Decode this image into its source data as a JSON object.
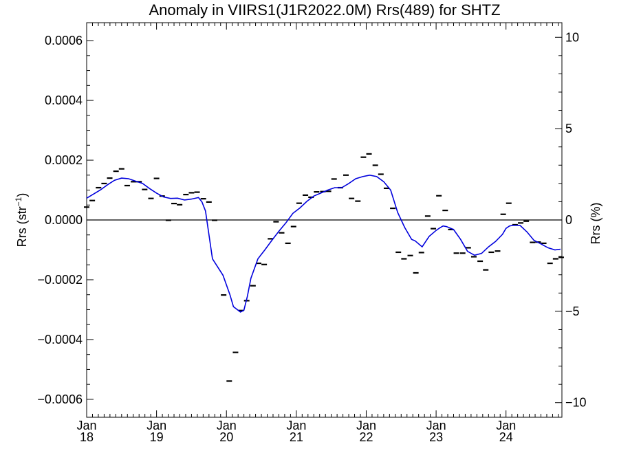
{
  "chart_data": {
    "type": "line",
    "title": "Anomaly in VIIRS1(J1R2022.0M) Rrs(489) for SHTZ",
    "ylabel_left": "Rrs (str",
    "ylabel_left_sup": "−1",
    "ylabel_left_end": ")",
    "ylabel_right": "Rrs (%)",
    "xlim": [
      2018.0,
      2024.8
    ],
    "ylim": [
      -0.00066,
      0.00066
    ],
    "ylim_right_percent": [
      -10.8,
      10.8
    ],
    "grid": false,
    "zero_line": true,
    "yticks_left": [
      {
        "value": 0.0006,
        "label": "0.0006"
      },
      {
        "value": 0.0004,
        "label": "0.0004"
      },
      {
        "value": 0.0002,
        "label": "0.0002"
      },
      {
        "value": 0.0,
        "label": "0.0000"
      },
      {
        "value": -0.0002,
        "label": "−0.0002"
      },
      {
        "value": -0.0004,
        "label": "−0.0004"
      },
      {
        "value": -0.0006,
        "label": "−0.0006"
      }
    ],
    "yticks_right": [
      {
        "value": 10,
        "label": "10"
      },
      {
        "value": 5,
        "label": "5"
      },
      {
        "value": 0,
        "label": "0"
      },
      {
        "value": -5,
        "label": "−5"
      },
      {
        "value": -10,
        "label": "−10"
      }
    ],
    "xticks": [
      {
        "value": 2018.0,
        "month": "Jan",
        "year": "18"
      },
      {
        "value": 2019.0,
        "month": "Jan",
        "year": "19"
      },
      {
        "value": 2020.0,
        "month": "Jan",
        "year": "20"
      },
      {
        "value": 2021.0,
        "month": "Jan",
        "year": "21"
      },
      {
        "value": 2022.0,
        "month": "Jan",
        "year": "22"
      },
      {
        "value": 2023.0,
        "month": "Jan",
        "year": "23"
      },
      {
        "value": 2024.0,
        "month": "Jan",
        "year": "24"
      }
    ],
    "series": [
      {
        "kind": "monthly-anomaly",
        "color": "#000000",
        "x": [
          2018.0,
          2018.08,
          2018.17,
          2018.25,
          2018.33,
          2018.42,
          2018.5,
          2018.58,
          2018.67,
          2018.75,
          2018.83,
          2018.92,
          2019.0,
          2019.08,
          2019.17,
          2019.25,
          2019.33,
          2019.42,
          2019.5,
          2019.58,
          2019.67,
          2019.75,
          2019.83,
          2019.96,
          2020.04,
          2020.13,
          2020.21,
          2020.29,
          2020.38,
          2020.46,
          2020.54,
          2020.63,
          2020.71,
          2020.79,
          2020.88,
          2020.96,
          2021.04,
          2021.13,
          2021.21,
          2021.29,
          2021.38,
          2021.46,
          2021.54,
          2021.63,
          2021.71,
          2021.79,
          2021.88,
          2021.96,
          2022.04,
          2022.13,
          2022.21,
          2022.29,
          2022.38,
          2022.46,
          2022.54,
          2022.63,
          2022.71,
          2022.79,
          2022.88,
          2022.96,
          2023.04,
          2023.13,
          2023.21,
          2023.29,
          2023.38,
          2023.46,
          2023.54,
          2023.63,
          2023.71,
          2023.79,
          2023.88,
          2023.96,
          2024.04,
          2024.13,
          2024.21,
          2024.29,
          2024.38,
          2024.46,
          2024.54,
          2024.63,
          2024.71,
          2024.79
        ],
        "y": [
          4.3e-05,
          6.5e-05,
          0.000108,
          0.000122,
          0.00014,
          0.000163,
          0.000171,
          0.000115,
          0.000128,
          0.000128,
          0.000102,
          7.2e-05,
          0.000139,
          8e-05,
          -1e-06,
          5.5e-05,
          5.1e-05,
          8.5e-05,
          9.1e-05,
          9.3e-05,
          7.1e-05,
          6e-05,
          -1e-06,
          -0.000251,
          -0.000539,
          -0.000443,
          -0.000303,
          -0.00027,
          -0.00022,
          -0.000145,
          -0.000149,
          -6.3e-05,
          -6e-06,
          -4.3e-05,
          -7.8e-05,
          -2.2e-05,
          5.6e-05,
          8.3e-05,
          7.6e-05,
          9.4e-05,
          9.5e-05,
          9.6e-05,
          0.000137,
          0.000108,
          0.00015,
          7.2e-05,
          6.3e-05,
          0.00021,
          0.000221,
          0.000183,
          0.000153,
          0.000106,
          3.9e-05,
          -0.000108,
          -0.00013,
          -0.000119,
          -0.000177,
          -0.000109,
          1.3e-05,
          -2.9e-05,
          8.1e-05,
          3.2e-05,
          -3.2e-05,
          -0.000111,
          -0.000111,
          -9.3e-05,
          -0.000123,
          -0.000138,
          -0.000167,
          -0.000108,
          -0.000104,
          1.9e-05,
          5.6e-05,
          -1.6e-05,
          -1e-05,
          -4e-06,
          -7.5e-05,
          -7.4e-05,
          -7.8e-05,
          -0.000145,
          -0.00013,
          -0.000125
        ]
      },
      {
        "kind": "running-mean",
        "color": "#0000dd",
        "x": [
          2018.0,
          2018.1,
          2018.2,
          2018.3,
          2018.4,
          2018.5,
          2018.6,
          2018.7,
          2018.8,
          2018.9,
          2019.0,
          2019.1,
          2019.2,
          2019.3,
          2019.4,
          2019.5,
          2019.6,
          2019.65,
          2019.7,
          2019.8,
          2019.95,
          2020.05,
          2020.1,
          2020.2,
          2020.25,
          2020.3,
          2020.35,
          2020.45,
          2020.55,
          2020.65,
          2020.75,
          2020.85,
          2020.95,
          2021.05,
          2021.15,
          2021.25,
          2021.35,
          2021.45,
          2021.55,
          2021.65,
          2021.75,
          2021.85,
          2021.95,
          2022.05,
          2022.15,
          2022.25,
          2022.35,
          2022.45,
          2022.55,
          2022.65,
          2022.7,
          2022.8,
          2022.9,
          2023.0,
          2023.05,
          2023.1,
          2023.15,
          2023.25,
          2023.35,
          2023.45,
          2023.55,
          2023.65,
          2023.75,
          2023.85,
          2023.95,
          2024.0,
          2024.05,
          2024.1,
          2024.2,
          2024.3,
          2024.4,
          2024.5,
          2024.6,
          2024.7,
          2024.78
        ],
        "y": [
          7.3e-05,
          8.7e-05,
          0.000101,
          0.000118,
          0.000133,
          0.00014,
          0.000138,
          0.00013,
          0.000122,
          0.000105,
          9e-05,
          7.7e-05,
          7.2e-05,
          7.3e-05,
          6.7e-05,
          7e-05,
          7.5e-05,
          6e-05,
          3e-05,
          -0.00013,
          -0.000185,
          -0.00025,
          -0.00029,
          -0.000308,
          -0.000302,
          -0.000255,
          -0.000195,
          -0.00013,
          -0.0001,
          -6.8e-05,
          -3.8e-05,
          -1e-05,
          2.2e-05,
          4e-05,
          6.2e-05,
          8e-05,
          9e-05,
          0.0001,
          0.000108,
          0.000108,
          0.000122,
          0.000138,
          0.000145,
          0.00015,
          0.000145,
          0.000128,
          0.0001,
          2.5e-05,
          -2.5e-05,
          -6.5e-05,
          -7e-05,
          -9e-05,
          -5.5e-05,
          -3.5e-05,
          -2.7e-05,
          -2e-05,
          -2.2e-05,
          -3.2e-05,
          -6.5e-05,
          -0.000105,
          -0.000118,
          -0.000112,
          -9e-05,
          -7.2e-05,
          -4.8e-05,
          -2.8e-05,
          -2e-05,
          -1.8e-05,
          -1.8e-05,
          -4e-05,
          -6.8e-05,
          -8e-05,
          -9.3e-05,
          -0.0001,
          -9.8e-05
        ]
      }
    ]
  }
}
